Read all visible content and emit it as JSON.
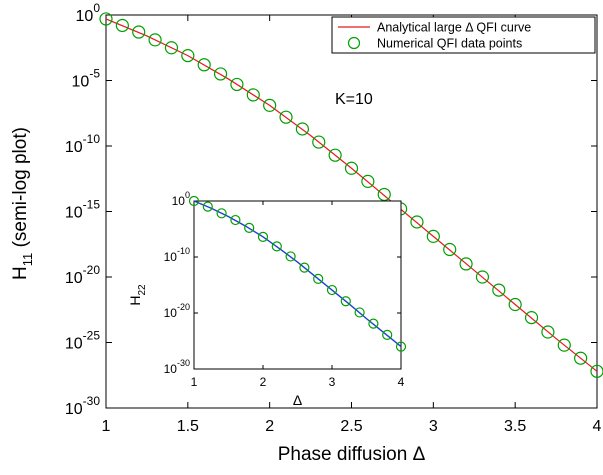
{
  "chart_data": [
    {
      "type": "line",
      "scale_y": "log",
      "xlabel": "Phase diffusion Δ",
      "ylabel_main": "H",
      "ylabel_sub": "11",
      "ylabel_tail": " (semi-log plot)",
      "xlim": [
        1,
        4
      ],
      "ylim_exp": [
        -30,
        0
      ],
      "x_ticks": [
        {
          "value": 1,
          "label": "1"
        },
        {
          "value": 1.5,
          "label": "1.5"
        },
        {
          "value": 2,
          "label": "2"
        },
        {
          "value": 2.5,
          "label": "2.5"
        },
        {
          "value": 3,
          "label": "3"
        },
        {
          "value": 3.5,
          "label": "3.5"
        },
        {
          "value": 4,
          "label": "4"
        }
      ],
      "y_ticks_exp": [
        {
          "value": 0,
          "exp": "0"
        },
        {
          "value": -5,
          "exp": "-5"
        },
        {
          "value": -10,
          "exp": "-10"
        },
        {
          "value": -15,
          "exp": "-15"
        },
        {
          "value": -20,
          "exp": "-20"
        },
        {
          "value": -25,
          "exp": "-25"
        },
        {
          "value": -30,
          "exp": "-30"
        }
      ],
      "annotation": "K=10",
      "legend_position": "top-right",
      "legend": [
        {
          "label": "Analytical large Δ QFI curve",
          "color": "#e8191c",
          "marker": "line"
        },
        {
          "label": "Numerical QFI data points",
          "color": "#00a000",
          "marker": "circle"
        }
      ],
      "series": [
        {
          "name": "Analytical large Δ QFI curve",
          "color": "#e8191c",
          "x": [
            1,
            1.25,
            1.5,
            1.75,
            2,
            2.25,
            2.5,
            2.75,
            3,
            3.25,
            3.5,
            3.75,
            4
          ],
          "y_log10": [
            -0.3,
            -1.6,
            -3.1,
            -4.9,
            -6.9,
            -9.2,
            -11.7,
            -14.3,
            -16.9,
            -19.5,
            -22.1,
            -24.7,
            -27.2
          ]
        },
        {
          "name": "Numerical QFI data points",
          "color": "#00a000",
          "x": [
            1,
            1.1,
            1.2,
            1.3,
            1.4,
            1.5,
            1.6,
            1.7,
            1.8,
            1.9,
            2,
            2.1,
            2.2,
            2.3,
            2.4,
            2.5,
            2.6,
            2.7,
            2.8,
            2.9,
            3,
            3.1,
            3.2,
            3.3,
            3.4,
            3.5,
            3.6,
            3.7,
            3.8,
            3.9,
            4
          ],
          "y_log10": [
            -0.3,
            -0.8,
            -1.3,
            -1.9,
            -2.5,
            -3.1,
            -3.8,
            -4.5,
            -5.3,
            -6.1,
            -6.9,
            -7.8,
            -8.7,
            -9.7,
            -10.7,
            -11.7,
            -12.7,
            -13.7,
            -14.8,
            -15.8,
            -16.9,
            -17.9,
            -19.0,
            -20.0,
            -21.0,
            -22.1,
            -23.1,
            -24.2,
            -25.2,
            -26.2,
            -27.2
          ]
        }
      ]
    },
    {
      "type": "line",
      "scale_y": "log",
      "role": "inset",
      "xlabel": "Δ",
      "ylabel_main": "H",
      "ylabel_sub": "22",
      "xlim": [
        1,
        4
      ],
      "ylim_exp": [
        -30,
        0
      ],
      "x_ticks": [
        {
          "value": 1,
          "label": "1"
        },
        {
          "value": 2,
          "label": "2"
        },
        {
          "value": 3,
          "label": "3"
        },
        {
          "value": 4,
          "label": "4"
        }
      ],
      "y_ticks_exp": [
        {
          "value": 0,
          "exp": "0"
        },
        {
          "value": -10,
          "exp": "-10"
        },
        {
          "value": -20,
          "exp": "-20"
        },
        {
          "value": -30,
          "exp": "-30"
        }
      ],
      "series": [
        {
          "name": "Analytical",
          "color": "#1f3fd6",
          "x": [
            1,
            1.25,
            1.5,
            1.75,
            2,
            2.25,
            2.5,
            2.75,
            3,
            3.25,
            3.5,
            3.75,
            4
          ],
          "y_log10": [
            0,
            -1.3,
            -2.8,
            -4.5,
            -6.4,
            -8.6,
            -10.9,
            -13.4,
            -15.9,
            -18.4,
            -21.0,
            -23.5,
            -26.0
          ]
        },
        {
          "name": "Numerical",
          "color": "#00a000",
          "x": [
            1,
            1.2,
            1.4,
            1.6,
            1.8,
            2,
            2.2,
            2.4,
            2.6,
            2.8,
            3,
            3.2,
            3.4,
            3.6,
            3.8,
            4
          ],
          "y_log10": [
            0,
            -1.0,
            -2.2,
            -3.4,
            -4.8,
            -6.4,
            -8.1,
            -9.9,
            -11.9,
            -13.9,
            -15.9,
            -17.9,
            -19.9,
            -21.9,
            -23.9,
            -26.0
          ]
        }
      ]
    }
  ]
}
